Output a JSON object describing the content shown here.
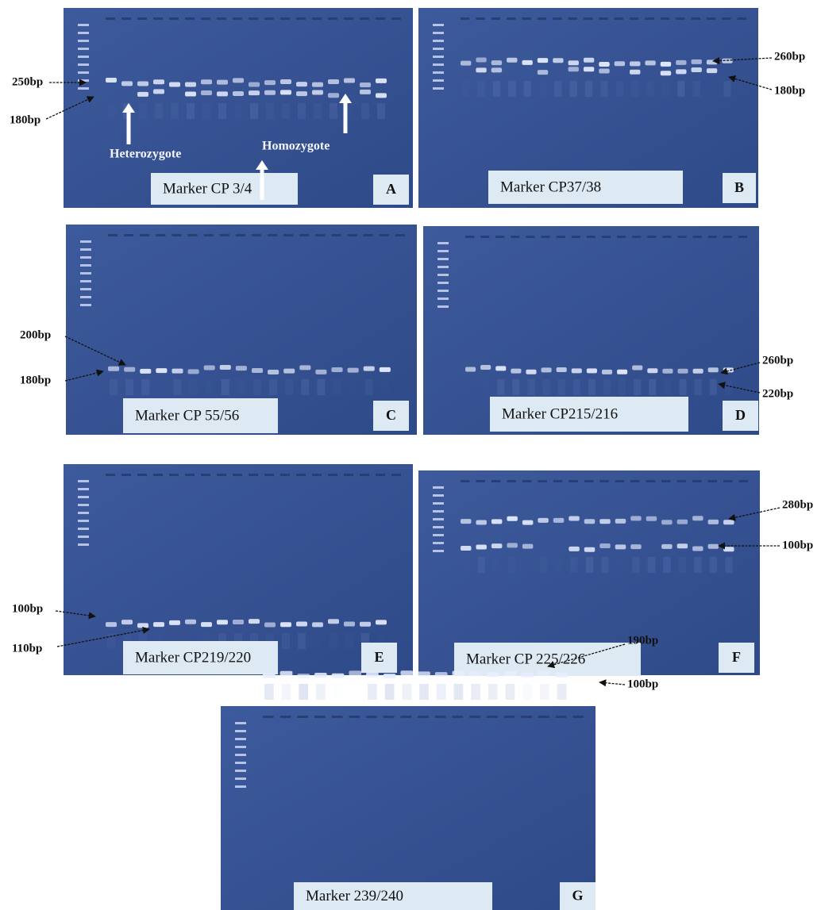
{
  "panels": [
    {
      "letter": "A",
      "marker": "Marker CP 3/4",
      "size_labels": [
        "250bp",
        "180bp"
      ],
      "annotations": [
        "Heterozygote",
        "Homozygote"
      ]
    },
    {
      "letter": "B",
      "marker": "Marker CP37/38",
      "size_labels": [
        "260bp",
        "180bp"
      ]
    },
    {
      "letter": "C",
      "marker": "Marker CP 55/56",
      "size_labels": [
        "200bp",
        "180bp"
      ]
    },
    {
      "letter": "D",
      "marker": "Marker CP215/216",
      "size_labels": [
        "260bp",
        "220bp"
      ]
    },
    {
      "letter": "E",
      "marker": "Marker CP219/220",
      "size_labels": [
        "100bp",
        "110bp"
      ]
    },
    {
      "letter": "F",
      "marker": "Marker CP 225/226",
      "size_labels": [
        "280bp",
        "100bp"
      ]
    },
    {
      "letter": "G",
      "marker": "Marker 239/240",
      "size_labels": [
        "190bp",
        "100bp"
      ]
    }
  ]
}
